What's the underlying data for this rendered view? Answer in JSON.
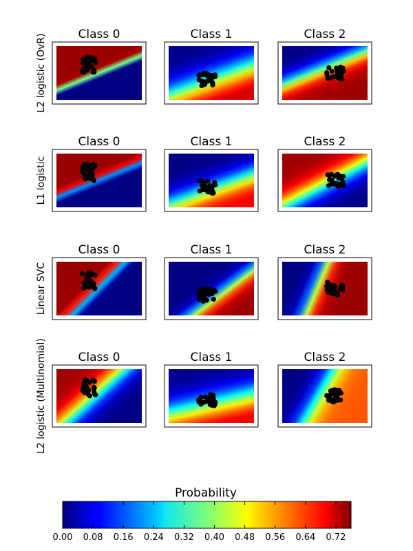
{
  "chart_data": {
    "type": "heatmap",
    "description_of_grid": "rows of classifiers x columns of classes",
    "rows": [
      {
        "label": "L2 logistic (OvR)",
        "panels": [
          {
            "title": "Class 0",
            "boundary": {
              "kind": "linear",
              "angle": -33,
              "offset": 0.0,
              "width": 0.08
            },
            "high_side": "upper-left",
            "max_prob": 0.74
          },
          {
            "title": "Class 1",
            "boundary": {
              "kind": "linear",
              "angle": -30,
              "offset": 0.25,
              "width": 0.55
            },
            "high_side": "lower-left",
            "max_prob": 0.74
          },
          {
            "title": "Class 2",
            "boundary": {
              "kind": "linear",
              "angle": -33,
              "offset": -0.15,
              "width": 0.35
            },
            "high_side": "lower-right",
            "max_prob": 0.74
          }
        ]
      },
      {
        "label": "L1 logistic",
        "panels": [
          {
            "title": "Class 0",
            "boundary": {
              "kind": "linear",
              "angle": -33,
              "offset": 0.05,
              "width": 0.1
            },
            "high_side": "upper-left",
            "max_prob": 0.74
          },
          {
            "title": "Class 1",
            "boundary": {
              "kind": "linear",
              "angle": -30,
              "offset": 0.3,
              "width": 0.45
            },
            "high_side": "lower-left",
            "max_prob": 0.7
          },
          {
            "title": "Class 2",
            "boundary": {
              "kind": "linear",
              "angle": -40,
              "offset": -0.1,
              "width": 0.4
            },
            "high_side": "upper-right",
            "max_prob": 0.74
          }
        ]
      },
      {
        "label": "Linear SVC",
        "panels": [
          {
            "title": "Class 0",
            "boundary": {
              "kind": "linear",
              "angle": -58,
              "offset": 0.05,
              "width": 0.12
            },
            "high_side": "upper-left",
            "max_prob": 0.74
          },
          {
            "title": "Class 1",
            "boundary": {
              "kind": "wedge",
              "angle": -50,
              "offset": 0.3,
              "width": 0.25
            },
            "high_side": "lower",
            "max_prob": 0.74
          },
          {
            "title": "Class 2",
            "boundary": {
              "kind": "linear",
              "angle": -75,
              "offset": -0.2,
              "width": 0.22
            },
            "high_side": "right",
            "max_prob": 0.74
          }
        ]
      },
      {
        "label": "L2 logistic (Multinomial)",
        "panels": [
          {
            "title": "Class 0",
            "boundary": {
              "kind": "linear",
              "angle": -55,
              "offset": 0.1,
              "width": 0.35
            },
            "high_side": "upper-left",
            "max_prob": 0.74
          },
          {
            "title": "Class 1",
            "boundary": {
              "kind": "linear",
              "angle": -20,
              "offset": 0.3,
              "width": 0.6
            },
            "high_side": "lower-left",
            "max_prob": 0.74
          },
          {
            "title": "Class 2",
            "boundary": {
              "kind": "linear",
              "angle": -70,
              "offset": -0.15,
              "width": 0.3
            },
            "high_side": "right",
            "max_prob": 0.6
          }
        ]
      }
    ],
    "colorbar": {
      "title": "Probability",
      "colormap": "jet",
      "range": [
        0.0,
        0.76
      ],
      "ticks": [
        "0.00",
        "0.08",
        "0.16",
        "0.24",
        "0.32",
        "0.40",
        "0.48",
        "0.56",
        "0.64",
        "0.72"
      ]
    }
  }
}
